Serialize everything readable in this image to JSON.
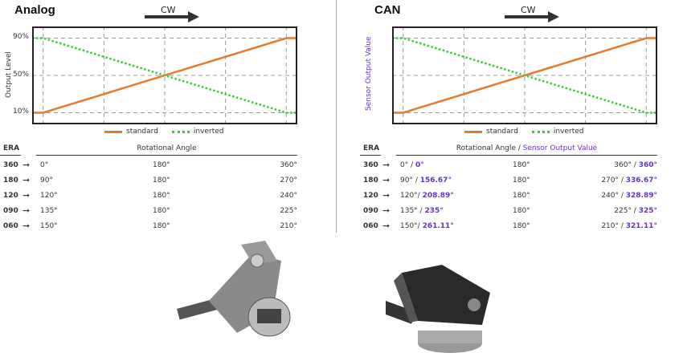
{
  "colors": {
    "standard": "#e8782a",
    "inverted": "#33cc33",
    "purple": "#6633cc"
  },
  "panels": [
    {
      "title": "Analog",
      "direction": "CW",
      "ylabel": "Output Level",
      "yticks": [
        "90%",
        "50%",
        "10%"
      ],
      "legend": [
        "standard",
        "inverted"
      ],
      "table": {
        "era_header": "ERA",
        "angle_header": "Rotational Angle",
        "angle_header_purple": "",
        "rows": [
          {
            "era": "360",
            "start": "0°",
            "start_p": "",
            "mid": "180°",
            "end": "360°",
            "end_p": ""
          },
          {
            "era": "180",
            "start": "90°",
            "start_p": "",
            "mid": "180°",
            "end": "270°",
            "end_p": ""
          },
          {
            "era": "120",
            "start": "120°",
            "start_p": "",
            "mid": "180°",
            "end": "240°",
            "end_p": ""
          },
          {
            "era": "090",
            "start": "135°",
            "start_p": "",
            "mid": "180°",
            "end": "225°",
            "end_p": ""
          },
          {
            "era": "060",
            "start": "150°",
            "start_p": "",
            "mid": "180°",
            "end": "210°",
            "end_p": ""
          }
        ]
      }
    },
    {
      "title": "CAN",
      "direction": "CW",
      "ylabel": "Sensor Output Value",
      "yticks": [
        "",
        "",
        ""
      ],
      "legend": [
        "standard",
        "inverted"
      ],
      "table": {
        "era_header": "ERA",
        "angle_header": "Rotational Angle / ",
        "angle_header_purple": "Sensor Output Value",
        "rows": [
          {
            "era": "360",
            "start": "0° / ",
            "start_p": "0°",
            "mid": "180°",
            "end": "360° / ",
            "end_p": "360°"
          },
          {
            "era": "180",
            "start": "90° / ",
            "start_p": "156.67°",
            "mid": "180°",
            "end": "270° / ",
            "end_p": "336.67°"
          },
          {
            "era": "120",
            "start": "120°/ ",
            "start_p": "208.89°",
            "mid": "180°",
            "end": "240° / ",
            "end_p": "328.89°"
          },
          {
            "era": "090",
            "start": "135° / ",
            "start_p": "235°",
            "mid": "180°",
            "end": "225° / ",
            "end_p": "325°"
          },
          {
            "era": "060",
            "start": "150°/ ",
            "start_p": "261.11°",
            "mid": "180°",
            "end": "210° / ",
            "end_p": "321.11°"
          }
        ]
      }
    }
  ],
  "chart_data": [
    {
      "type": "line",
      "title": "Analog",
      "ylabel": "Output Level",
      "yticks": [
        90,
        50,
        10
      ],
      "grid": true,
      "legend": "bottom",
      "series": [
        {
          "name": "standard",
          "points": [
            [
              0,
              10
            ],
            [
              15,
              10
            ],
            [
              345,
              90
            ],
            [
              360,
              90
            ]
          ]
        },
        {
          "name": "inverted",
          "points": [
            [
              0,
              90
            ],
            [
              15,
              90
            ],
            [
              345,
              10
            ],
            [
              360,
              10
            ]
          ]
        }
      ]
    },
    {
      "type": "line",
      "title": "CAN",
      "ylabel": "Sensor Output Value",
      "grid": true,
      "legend": "bottom",
      "series": [
        {
          "name": "standard",
          "points": [
            [
              0,
              10
            ],
            [
              15,
              10
            ],
            [
              345,
              90
            ],
            [
              360,
              90
            ]
          ]
        },
        {
          "name": "inverted",
          "points": [
            [
              0,
              90
            ],
            [
              15,
              90
            ],
            [
              345,
              10
            ],
            [
              360,
              10
            ]
          ]
        }
      ]
    }
  ]
}
